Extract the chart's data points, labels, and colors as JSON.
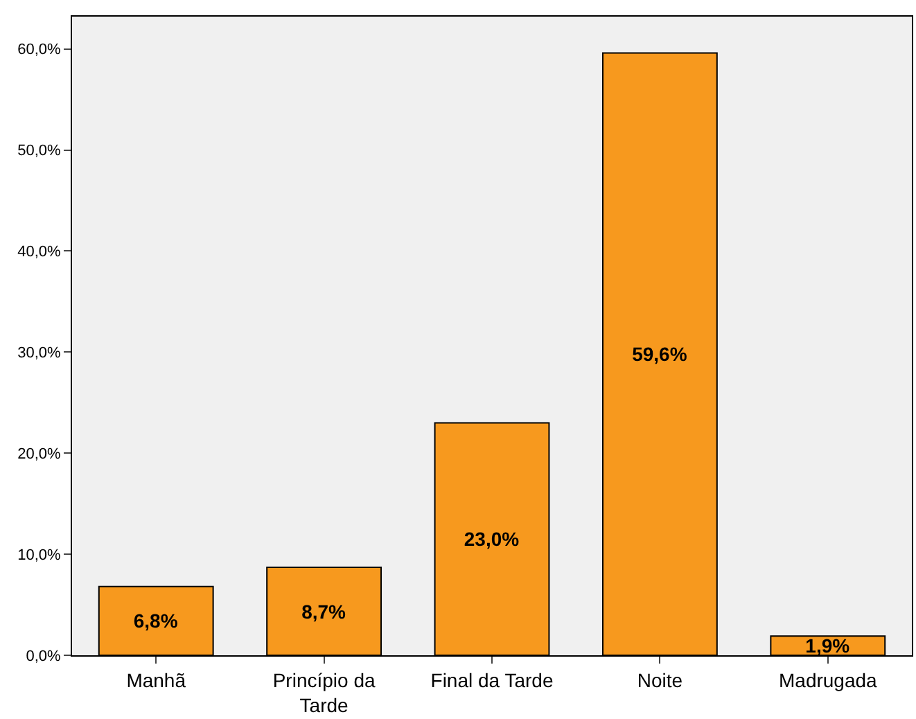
{
  "chart_data": {
    "type": "bar",
    "categories": [
      "Manhã",
      "Princípio da Tarde",
      "Final da Tarde",
      "Noite",
      "Madrugada"
    ],
    "values": [
      6.8,
      8.7,
      23.0,
      59.6,
      1.9
    ],
    "color": "#f7991e",
    "value_labels": [
      "6,8%",
      "8,7%",
      "23,0%",
      "59,6%",
      "1,9%"
    ],
    "ylim": [
      0,
      63.2
    ],
    "yticks": [
      {
        "value": 0,
        "label": "0,0%"
      },
      {
        "value": 10,
        "label": "10,0%"
      },
      {
        "value": 20,
        "label": "20,0%"
      },
      {
        "value": 30,
        "label": "30,0%"
      },
      {
        "value": 40,
        "label": "40,0%"
      },
      {
        "value": 50,
        "label": "50,0%"
      },
      {
        "value": 60,
        "label": "60,0%"
      }
    ],
    "grid": false,
    "legend": false
  }
}
